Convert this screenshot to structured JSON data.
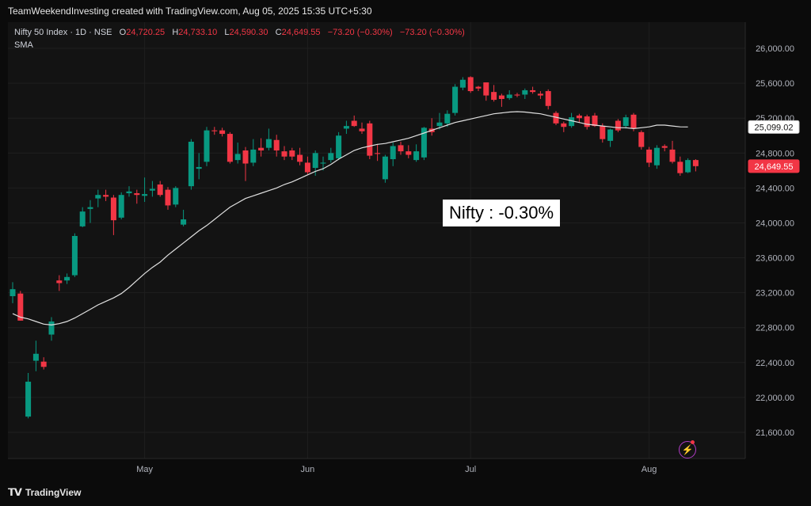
{
  "header": {
    "attribution": "TeamWeekendInvesting created with TradingView.com, Aug 05, 2025 15:35 UTC+5:30"
  },
  "legend": {
    "symbol": "Nifty 50 Index · 1D · NSE",
    "open_label": "O",
    "open": "24,720.25",
    "high_label": "H",
    "high": "24,733.10",
    "low_label": "L",
    "low": "24,590.30",
    "close_label": "C",
    "close": "24,649.55",
    "change": "−73.20 (−0.30%)",
    "change2": "−73.20 (−0.30%)",
    "indicator": "SMA"
  },
  "annotation": "Nifty : -0.30%",
  "footer": {
    "brand": "TradingView",
    "logo_icon": "tradingview-logo-icon"
  },
  "colors": {
    "up": "#089981",
    "down": "#f23645",
    "sma": "#e0e0e0",
    "background": "#131313"
  },
  "chart_data": {
    "type": "candlestick",
    "title": "Nifty 50 Index · 1D · NSE",
    "ylim": [
      21300,
      26300
    ],
    "y_ticks": [
      "21,600.00",
      "22,000.00",
      "22,400.00",
      "22,800.00",
      "23,200.00",
      "23,600.00",
      "24,000.00",
      "24,400.00",
      "24,800.00",
      "25,200.00",
      "25,600.00",
      "26,000.00"
    ],
    "y_tick_values": [
      21600,
      22000,
      22400,
      22800,
      23200,
      23600,
      24000,
      24400,
      24800,
      25200,
      25600,
      26000
    ],
    "x_ticks": [
      {
        "label": "May",
        "index": 17
      },
      {
        "label": "Jun",
        "index": 38
      },
      {
        "label": "Jul",
        "index": 59
      },
      {
        "label": "Aug",
        "index": 82
      }
    ],
    "price_labels": [
      {
        "label": "SMA",
        "value": 25099.02,
        "text": "25,099.02"
      },
      {
        "label": "Close",
        "value": 24649.55,
        "text": "24,649.55"
      }
    ],
    "candles": [
      {
        "o": 23160,
        "h": 23320,
        "l": 23080,
        "c": 23240
      },
      {
        "o": 23190,
        "h": 23220,
        "l": 22880,
        "c": 22880
      },
      {
        "o": 21780,
        "h": 22280,
        "l": 21760,
        "c": 22180
      },
      {
        "o": 22420,
        "h": 22650,
        "l": 22300,
        "c": 22500
      },
      {
        "o": 22410,
        "h": 22460,
        "l": 22320,
        "c": 22350
      },
      {
        "o": 22720,
        "h": 22920,
        "l": 22650,
        "c": 22870
      },
      {
        "o": 23340,
        "h": 23400,
        "l": 23220,
        "c": 23310
      },
      {
        "o": 23340,
        "h": 23420,
        "l": 23300,
        "c": 23380
      },
      {
        "o": 23400,
        "h": 23880,
        "l": 23380,
        "c": 23850
      },
      {
        "o": 23960,
        "h": 24180,
        "l": 23950,
        "c": 24130
      },
      {
        "o": 24160,
        "h": 24260,
        "l": 24000,
        "c": 24180
      },
      {
        "o": 24280,
        "h": 24380,
        "l": 24180,
        "c": 24320
      },
      {
        "o": 24320,
        "h": 24380,
        "l": 24250,
        "c": 24300
      },
      {
        "o": 24290,
        "h": 24320,
        "l": 23860,
        "c": 24030
      },
      {
        "o": 24060,
        "h": 24350,
        "l": 24040,
        "c": 24320
      },
      {
        "o": 24340,
        "h": 24420,
        "l": 24300,
        "c": 24360
      },
      {
        "o": 24340,
        "h": 24380,
        "l": 24220,
        "c": 24320
      },
      {
        "o": 24310,
        "h": 24520,
        "l": 24240,
        "c": 24330
      },
      {
        "o": 24370,
        "h": 24480,
        "l": 24300,
        "c": 24390
      },
      {
        "o": 24440,
        "h": 24480,
        "l": 24300,
        "c": 24320
      },
      {
        "o": 24380,
        "h": 24410,
        "l": 24150,
        "c": 24200
      },
      {
        "o": 24210,
        "h": 24420,
        "l": 24180,
        "c": 24400
      },
      {
        "o": 23980,
        "h": 24150,
        "l": 23960,
        "c": 24040
      },
      {
        "o": 24420,
        "h": 24960,
        "l": 24380,
        "c": 24930
      },
      {
        "o": 24620,
        "h": 24800,
        "l": 24500,
        "c": 24640
      },
      {
        "o": 24700,
        "h": 25100,
        "l": 24650,
        "c": 25060
      },
      {
        "o": 25060,
        "h": 25100,
        "l": 25010,
        "c": 25050
      },
      {
        "o": 25060,
        "h": 25090,
        "l": 24990,
        "c": 25020
      },
      {
        "o": 25020,
        "h": 25040,
        "l": 24680,
        "c": 24700
      },
      {
        "o": 24720,
        "h": 24920,
        "l": 24680,
        "c": 24790
      },
      {
        "o": 24830,
        "h": 24870,
        "l": 24480,
        "c": 24680
      },
      {
        "o": 24690,
        "h": 24960,
        "l": 24650,
        "c": 24840
      },
      {
        "o": 24860,
        "h": 24970,
        "l": 24760,
        "c": 24830
      },
      {
        "o": 24860,
        "h": 25080,
        "l": 24830,
        "c": 24960
      },
      {
        "o": 24950,
        "h": 25010,
        "l": 24760,
        "c": 24830
      },
      {
        "o": 24820,
        "h": 24880,
        "l": 24720,
        "c": 24760
      },
      {
        "o": 24830,
        "h": 24860,
        "l": 24720,
        "c": 24760
      },
      {
        "o": 24780,
        "h": 24860,
        "l": 24660,
        "c": 24700
      },
      {
        "o": 24690,
        "h": 24760,
        "l": 24560,
        "c": 24580
      },
      {
        "o": 24630,
        "h": 24830,
        "l": 24540,
        "c": 24800
      },
      {
        "o": 24680,
        "h": 24760,
        "l": 24600,
        "c": 24690
      },
      {
        "o": 24720,
        "h": 24860,
        "l": 24690,
        "c": 24800
      },
      {
        "o": 24740,
        "h": 25040,
        "l": 24720,
        "c": 25000
      },
      {
        "o": 25080,
        "h": 25170,
        "l": 25020,
        "c": 25110
      },
      {
        "o": 25170,
        "h": 25230,
        "l": 25100,
        "c": 25110
      },
      {
        "o": 25080,
        "h": 25150,
        "l": 25020,
        "c": 25050
      },
      {
        "o": 25140,
        "h": 25170,
        "l": 24730,
        "c": 24770
      },
      {
        "o": 24800,
        "h": 24900,
        "l": 24710,
        "c": 24790
      },
      {
        "o": 24500,
        "h": 24780,
        "l": 24460,
        "c": 24760
      },
      {
        "o": 24730,
        "h": 24920,
        "l": 24650,
        "c": 24880
      },
      {
        "o": 24890,
        "h": 24930,
        "l": 24780,
        "c": 24820
      },
      {
        "o": 24820,
        "h": 24890,
        "l": 24740,
        "c": 24780
      },
      {
        "o": 24720,
        "h": 24900,
        "l": 24700,
        "c": 24820
      },
      {
        "o": 24750,
        "h": 25100,
        "l": 24720,
        "c": 25090
      },
      {
        "o": 25080,
        "h": 25200,
        "l": 25000,
        "c": 25040
      },
      {
        "o": 25110,
        "h": 25260,
        "l": 25070,
        "c": 25150
      },
      {
        "o": 25140,
        "h": 25290,
        "l": 25100,
        "c": 25250
      },
      {
        "o": 25260,
        "h": 25590,
        "l": 25230,
        "c": 25560
      },
      {
        "o": 25550,
        "h": 25670,
        "l": 25520,
        "c": 25640
      },
      {
        "o": 25670,
        "h": 25680,
        "l": 25490,
        "c": 25510
      },
      {
        "o": 25560,
        "h": 25570,
        "l": 25510,
        "c": 25540
      },
      {
        "o": 25610,
        "h": 25610,
        "l": 25400,
        "c": 25460
      },
      {
        "o": 25500,
        "h": 25580,
        "l": 25390,
        "c": 25410
      },
      {
        "o": 25460,
        "h": 25480,
        "l": 25330,
        "c": 25420
      },
      {
        "o": 25430,
        "h": 25520,
        "l": 25410,
        "c": 25470
      },
      {
        "o": 25470,
        "h": 25490,
        "l": 25440,
        "c": 25460
      },
      {
        "o": 25470,
        "h": 25540,
        "l": 25420,
        "c": 25520
      },
      {
        "o": 25520,
        "h": 25560,
        "l": 25480,
        "c": 25500
      },
      {
        "o": 25480,
        "h": 25510,
        "l": 25420,
        "c": 25460
      },
      {
        "o": 25510,
        "h": 25530,
        "l": 25300,
        "c": 25340
      },
      {
        "o": 25260,
        "h": 25280,
        "l": 25120,
        "c": 25140
      },
      {
        "o": 25140,
        "h": 25160,
        "l": 25040,
        "c": 25100
      },
      {
        "o": 25110,
        "h": 25260,
        "l": 25090,
        "c": 25210
      },
      {
        "o": 25230,
        "h": 25250,
        "l": 25150,
        "c": 25200
      },
      {
        "o": 25220,
        "h": 25240,
        "l": 25070,
        "c": 25100
      },
      {
        "o": 25230,
        "h": 25260,
        "l": 25100,
        "c": 25110
      },
      {
        "o": 25110,
        "h": 25140,
        "l": 24920,
        "c": 24960
      },
      {
        "o": 24940,
        "h": 25080,
        "l": 24870,
        "c": 25070
      },
      {
        "o": 25170,
        "h": 25190,
        "l": 25040,
        "c": 25060
      },
      {
        "o": 25110,
        "h": 25240,
        "l": 25080,
        "c": 25210
      },
      {
        "o": 25240,
        "h": 25260,
        "l": 25050,
        "c": 25080
      },
      {
        "o": 25040,
        "h": 25060,
        "l": 24840,
        "c": 24870
      },
      {
        "o": 24840,
        "h": 24870,
        "l": 24640,
        "c": 24690
      },
      {
        "o": 24660,
        "h": 24890,
        "l": 24620,
        "c": 24860
      },
      {
        "o": 24880,
        "h": 24900,
        "l": 24820,
        "c": 24860
      },
      {
        "o": 24840,
        "h": 24940,
        "l": 24680,
        "c": 24700
      },
      {
        "o": 24700,
        "h": 24760,
        "l": 24540,
        "c": 24570
      },
      {
        "o": 24580,
        "h": 24740,
        "l": 24570,
        "c": 24720
      },
      {
        "o": 24720,
        "h": 24730,
        "l": 24590,
        "c": 24650
      }
    ],
    "sma": [
      22960,
      22920,
      22900,
      22870,
      22840,
      22830,
      22845,
      22870,
      22910,
      22960,
      23010,
      23060,
      23100,
      23140,
      23190,
      23260,
      23340,
      23420,
      23490,
      23550,
      23630,
      23700,
      23770,
      23840,
      23910,
      23970,
      24040,
      24110,
      24180,
      24230,
      24280,
      24310,
      24340,
      24370,
      24400,
      24440,
      24470,
      24510,
      24550,
      24590,
      24620,
      24670,
      24730,
      24780,
      24830,
      24860,
      24880,
      24900,
      24910,
      24930,
      24950,
      24970,
      25000,
      25030,
      25060,
      25090,
      25120,
      25150,
      25170,
      25190,
      25210,
      25230,
      25250,
      25260,
      25270,
      25275,
      25270,
      25260,
      25250,
      25230,
      25210,
      25190,
      25170,
      25150,
      25130,
      25120,
      25110,
      25100,
      25090,
      25090,
      25080,
      25090,
      25100,
      25120,
      25120,
      25110,
      25100,
      25099.02
    ]
  }
}
